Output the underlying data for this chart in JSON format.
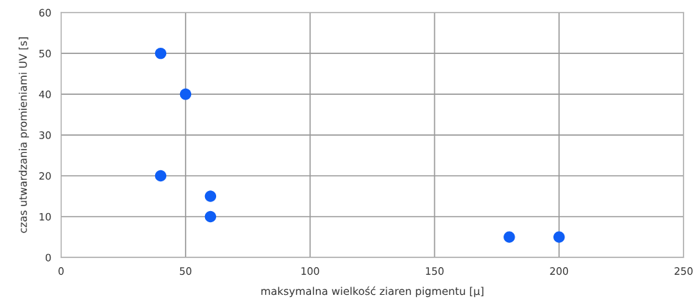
{
  "chart_data": {
    "type": "scatter",
    "xlabel": "maksymalna wielkość ziaren pigmentu [µ]",
    "ylabel": "czas utwardzania promieniami UV [s]",
    "x": [
      40,
      50,
      40,
      60,
      60,
      180,
      200
    ],
    "series": [
      {
        "color": "#0f5ef5",
        "values": [
          50,
          40,
          20,
          15,
          10,
          5,
          5
        ]
      }
    ],
    "xlim": [
      0,
      250
    ],
    "xticks": [
      0,
      50,
      100,
      150,
      200,
      250
    ],
    "ylim": [
      0,
      60
    ],
    "yticks": [
      0,
      10,
      20,
      30,
      40,
      50,
      60
    ],
    "grid": true,
    "marker": "circle",
    "legend": false
  }
}
